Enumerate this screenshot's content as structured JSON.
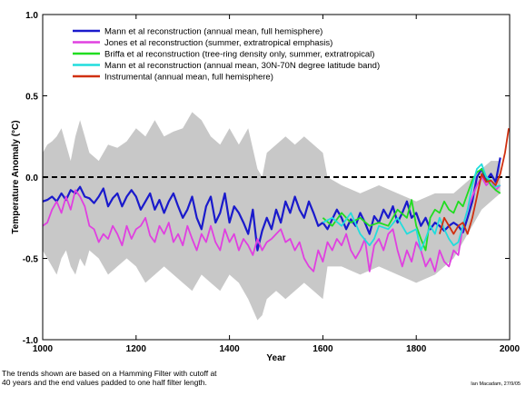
{
  "chart_data": {
    "type": "line",
    "xlabel": "Year",
    "ylabel": "Temperature Anomaly (°C)",
    "xlim": [
      1000,
      2000
    ],
    "ylim": [
      -1.0,
      1.0
    ],
    "x_ticks": [
      "1000",
      "1200",
      "1400",
      "1600",
      "1800",
      "2000"
    ],
    "y_ticks": [
      "-1.0",
      "-0.5",
      "0.0",
      "0.5",
      "1.0"
    ],
    "zero_line": "dashed",
    "grid": false,
    "legend_position": "top-left",
    "uncertainty_band": {
      "x": [
        1000,
        1010,
        1020,
        1030,
        1040,
        1050,
        1060,
        1070,
        1080,
        1090,
        1100,
        1120,
        1140,
        1160,
        1180,
        1200,
        1220,
        1240,
        1260,
        1280,
        1300,
        1320,
        1340,
        1360,
        1380,
        1400,
        1420,
        1440,
        1460,
        1470,
        1480,
        1500,
        1520,
        1540,
        1560,
        1580,
        1600,
        1610,
        1640,
        1680,
        1720,
        1760,
        1800,
        1840,
        1880,
        1920,
        1940,
        1960,
        1980
      ],
      "upper": [
        0.15,
        0.2,
        0.22,
        0.25,
        0.3,
        0.2,
        0.1,
        0.25,
        0.35,
        0.25,
        0.15,
        0.1,
        0.2,
        0.18,
        0.22,
        0.3,
        0.25,
        0.35,
        0.25,
        0.28,
        0.3,
        0.4,
        0.35,
        0.25,
        0.2,
        0.3,
        0.2,
        0.3,
        0.05,
        0.0,
        0.15,
        0.2,
        0.25,
        0.2,
        0.25,
        0.2,
        0.15,
        0.0,
        -0.05,
        -0.1,
        -0.05,
        -0.1,
        -0.15,
        -0.1,
        -0.1,
        0.0,
        0.05,
        0.1,
        0.1
      ],
      "lower": [
        -0.45,
        -0.5,
        -0.55,
        -0.6,
        -0.5,
        -0.45,
        -0.55,
        -0.6,
        -0.5,
        -0.55,
        -0.45,
        -0.5,
        -0.6,
        -0.55,
        -0.5,
        -0.55,
        -0.65,
        -0.6,
        -0.55,
        -0.6,
        -0.65,
        -0.7,
        -0.6,
        -0.65,
        -0.7,
        -0.6,
        -0.65,
        -0.75,
        -0.88,
        -0.85,
        -0.75,
        -0.7,
        -0.75,
        -0.7,
        -0.65,
        -0.7,
        -0.75,
        -0.55,
        -0.55,
        -0.6,
        -0.55,
        -0.6,
        -0.65,
        -0.6,
        -0.5,
        -0.3,
        -0.2,
        -0.15,
        -0.1
      ]
    },
    "series": [
      {
        "name": "Mann et al reconstruction (annual mean, full hemisphere)",
        "color": "#1a1acc",
        "x": [
          1000,
          1010,
          1020,
          1030,
          1040,
          1050,
          1060,
          1070,
          1080,
          1090,
          1100,
          1110,
          1120,
          1130,
          1140,
          1150,
          1160,
          1170,
          1180,
          1190,
          1200,
          1210,
          1220,
          1230,
          1240,
          1250,
          1260,
          1270,
          1280,
          1290,
          1300,
          1310,
          1320,
          1330,
          1340,
          1350,
          1360,
          1370,
          1380,
          1390,
          1400,
          1410,
          1420,
          1430,
          1440,
          1450,
          1460,
          1470,
          1480,
          1490,
          1500,
          1510,
          1520,
          1530,
          1540,
          1550,
          1560,
          1570,
          1580,
          1590,
          1600,
          1610,
          1620,
          1630,
          1640,
          1650,
          1660,
          1670,
          1680,
          1690,
          1700,
          1710,
          1720,
          1730,
          1740,
          1750,
          1760,
          1770,
          1780,
          1790,
          1800,
          1810,
          1820,
          1830,
          1840,
          1850,
          1860,
          1870,
          1880,
          1890,
          1900,
          1910,
          1920,
          1930,
          1940,
          1950,
          1960,
          1970,
          1980
        ],
        "values": [
          -0.15,
          -0.14,
          -0.12,
          -0.15,
          -0.1,
          -0.14,
          -0.08,
          -0.1,
          -0.06,
          -0.12,
          -0.13,
          -0.16,
          -0.12,
          -0.07,
          -0.18,
          -0.13,
          -0.1,
          -0.18,
          -0.12,
          -0.08,
          -0.12,
          -0.2,
          -0.15,
          -0.1,
          -0.2,
          -0.14,
          -0.22,
          -0.15,
          -0.1,
          -0.18,
          -0.25,
          -0.2,
          -0.12,
          -0.25,
          -0.32,
          -0.18,
          -0.12,
          -0.28,
          -0.22,
          -0.1,
          -0.28,
          -0.18,
          -0.22,
          -0.28,
          -0.35,
          -0.2,
          -0.45,
          -0.33,
          -0.25,
          -0.32,
          -0.2,
          -0.28,
          -0.15,
          -0.22,
          -0.12,
          -0.2,
          -0.25,
          -0.15,
          -0.22,
          -0.3,
          -0.28,
          -0.32,
          -0.26,
          -0.2,
          -0.25,
          -0.32,
          -0.26,
          -0.3,
          -0.22,
          -0.28,
          -0.35,
          -0.24,
          -0.28,
          -0.2,
          -0.25,
          -0.18,
          -0.28,
          -0.22,
          -0.15,
          -0.25,
          -0.22,
          -0.3,
          -0.25,
          -0.32,
          -0.28,
          -0.3,
          -0.33,
          -0.3,
          -0.28,
          -0.3,
          -0.34,
          -0.25,
          -0.15,
          0.0,
          0.05,
          -0.02,
          0.02,
          -0.03,
          0.12
        ]
      },
      {
        "name": "Jones et al reconstruction (summer, extratropical emphasis)",
        "color": "#e040e0",
        "x": [
          1000,
          1010,
          1020,
          1030,
          1040,
          1050,
          1060,
          1070,
          1080,
          1090,
          1100,
          1110,
          1120,
          1130,
          1140,
          1150,
          1160,
          1170,
          1180,
          1190,
          1200,
          1210,
          1220,
          1230,
          1240,
          1250,
          1260,
          1270,
          1280,
          1290,
          1300,
          1310,
          1320,
          1330,
          1340,
          1350,
          1360,
          1370,
          1380,
          1390,
          1400,
          1410,
          1420,
          1430,
          1440,
          1450,
          1460,
          1470,
          1480,
          1490,
          1500,
          1510,
          1520,
          1530,
          1540,
          1550,
          1560,
          1570,
          1580,
          1590,
          1600,
          1610,
          1620,
          1630,
          1640,
          1650,
          1660,
          1670,
          1680,
          1690,
          1700,
          1710,
          1720,
          1730,
          1740,
          1750,
          1760,
          1770,
          1780,
          1790,
          1800,
          1810,
          1820,
          1830,
          1840,
          1850,
          1860,
          1870,
          1880,
          1890,
          1900,
          1910,
          1920,
          1930,
          1940,
          1950,
          1960,
          1970,
          1980
        ],
        "values": [
          -0.3,
          -0.28,
          -0.2,
          -0.15,
          -0.22,
          -0.12,
          -0.2,
          -0.08,
          -0.12,
          -0.18,
          -0.3,
          -0.32,
          -0.4,
          -0.35,
          -0.38,
          -0.3,
          -0.35,
          -0.42,
          -0.3,
          -0.38,
          -0.32,
          -0.3,
          -0.25,
          -0.36,
          -0.4,
          -0.3,
          -0.35,
          -0.28,
          -0.4,
          -0.35,
          -0.42,
          -0.3,
          -0.38,
          -0.45,
          -0.35,
          -0.4,
          -0.3,
          -0.4,
          -0.45,
          -0.32,
          -0.4,
          -0.35,
          -0.45,
          -0.38,
          -0.42,
          -0.48,
          -0.38,
          -0.45,
          -0.4,
          -0.38,
          -0.35,
          -0.32,
          -0.4,
          -0.38,
          -0.45,
          -0.4,
          -0.5,
          -0.55,
          -0.58,
          -0.45,
          -0.52,
          -0.4,
          -0.45,
          -0.38,
          -0.42,
          -0.35,
          -0.45,
          -0.5,
          -0.45,
          -0.38,
          -0.58,
          -0.42,
          -0.38,
          -0.45,
          -0.35,
          -0.32,
          -0.45,
          -0.55,
          -0.45,
          -0.52,
          -0.4,
          -0.45,
          -0.55,
          -0.5,
          -0.58,
          -0.45,
          -0.52,
          -0.55,
          -0.45,
          -0.48,
          -0.3,
          -0.2,
          -0.12,
          -0.05,
          0.0,
          -0.05,
          -0.02,
          -0.08,
          -0.05
        ]
      },
      {
        "name": "Briffa et al reconstruction (tree-ring density only, summer, extratropical)",
        "color": "#20dd20",
        "x": [
          1600,
          1620,
          1640,
          1660,
          1680,
          1700,
          1720,
          1740,
          1760,
          1780,
          1790,
          1800,
          1810,
          1820,
          1830,
          1840,
          1850,
          1860,
          1870,
          1880,
          1890,
          1900,
          1910,
          1920,
          1930,
          1940,
          1950,
          1960,
          1970,
          1980
        ],
        "values": [
          -0.25,
          -0.3,
          -0.22,
          -0.28,
          -0.25,
          -0.3,
          -0.28,
          -0.3,
          -0.2,
          -0.25,
          -0.14,
          -0.3,
          -0.38,
          -0.45,
          -0.25,
          -0.2,
          -0.22,
          -0.15,
          -0.2,
          -0.22,
          -0.15,
          -0.18,
          -0.1,
          -0.02,
          0.03,
          0.05,
          0.0,
          -0.05,
          -0.08,
          -0.1
        ]
      },
      {
        "name": "Mann et al reconstruction (annual mean, 30N-70N degree latitude band)",
        "color": "#22dddd",
        "x": [
          1600,
          1620,
          1640,
          1660,
          1680,
          1700,
          1710,
          1720,
          1740,
          1760,
          1780,
          1800,
          1810,
          1820,
          1830,
          1840,
          1850,
          1860,
          1870,
          1880,
          1890,
          1900,
          1910,
          1920,
          1930,
          1940,
          1950,
          1960,
          1970,
          1980
        ],
        "values": [
          -0.28,
          -0.25,
          -0.3,
          -0.22,
          -0.35,
          -0.42,
          -0.38,
          -0.3,
          -0.32,
          -0.25,
          -0.35,
          -0.32,
          -0.45,
          -0.38,
          -0.3,
          -0.35,
          -0.25,
          -0.32,
          -0.38,
          -0.42,
          -0.4,
          -0.3,
          -0.2,
          -0.05,
          0.05,
          0.08,
          0.0,
          -0.02,
          -0.06,
          -0.05
        ]
      },
      {
        "name": "Instrumental (annual mean, full hemisphere)",
        "color": "#d03010",
        "x": [
          1850,
          1860,
          1870,
          1880,
          1890,
          1900,
          1910,
          1920,
          1930,
          1940,
          1950,
          1960,
          1970,
          1980,
          1990,
          1998
        ],
        "values": [
          -0.35,
          -0.25,
          -0.3,
          -0.35,
          -0.3,
          -0.28,
          -0.35,
          -0.25,
          -0.12,
          0.02,
          -0.03,
          -0.02,
          -0.05,
          0.02,
          0.15,
          0.3
        ]
      }
    ]
  },
  "footnote": {
    "line1": "The trends shown are based on a Hamming Filter with cutoff at",
    "line2": "40 years and the end values padded to one half filter length."
  },
  "credit": "Ian Macadam, 27/9/05"
}
